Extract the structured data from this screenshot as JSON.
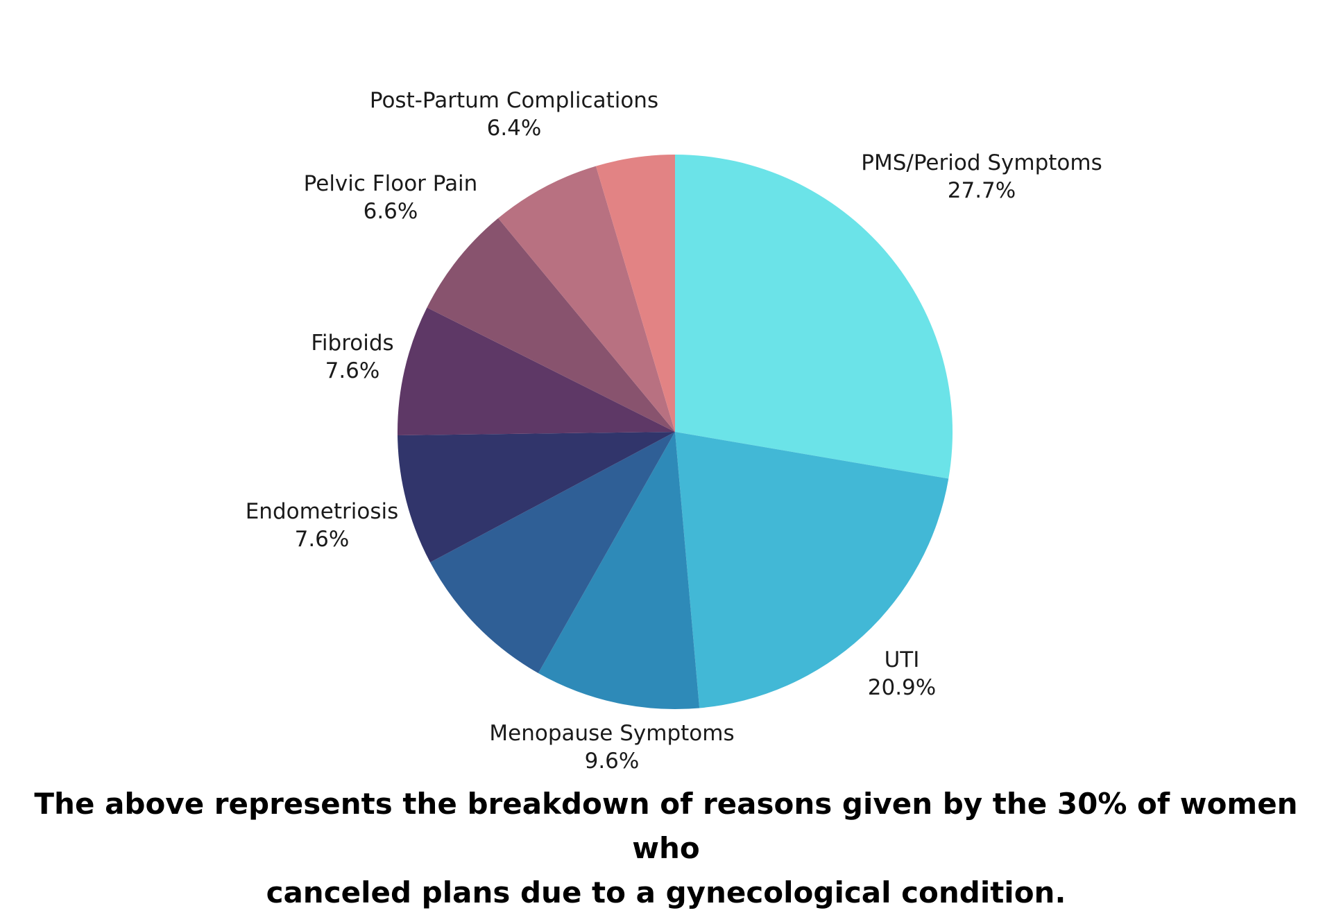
{
  "chart_data": {
    "type": "pie",
    "title": "",
    "slices": [
      {
        "label": "PMS/Period Symptoms",
        "value": 27.7,
        "display": "27.7%",
        "color": "#6BE3E8"
      },
      {
        "label": "UTI",
        "value": 20.9,
        "display": "20.9%",
        "color": "#42B8D6"
      },
      {
        "label": "Menopause Symptoms",
        "value": 9.6,
        "display": "9.6%",
        "color": "#2E8AB8"
      },
      {
        "label": "",
        "value": 9.0,
        "display": "",
        "color": "#2F5F96"
      },
      {
        "label": "Endometriosis",
        "value": 7.6,
        "display": "7.6%",
        "color": "#31356B"
      },
      {
        "label": "Fibroids",
        "value": 7.6,
        "display": "7.6%",
        "color": "#5E3866"
      },
      {
        "label": "Pelvic Floor Pain",
        "value": 6.6,
        "display": "6.6%",
        "color": "#88536E"
      },
      {
        "label": "Post-Partum Complications",
        "value": 6.4,
        "display": "6.4%",
        "color": "#B87181"
      },
      {
        "label": "",
        "value": 4.6,
        "display": "",
        "color": "#E28384"
      }
    ]
  },
  "caption": {
    "line1": "The above represents the breakdown of reasons given by the 30% of women who",
    "line2": "canceled plans due to a gynecological condition."
  }
}
